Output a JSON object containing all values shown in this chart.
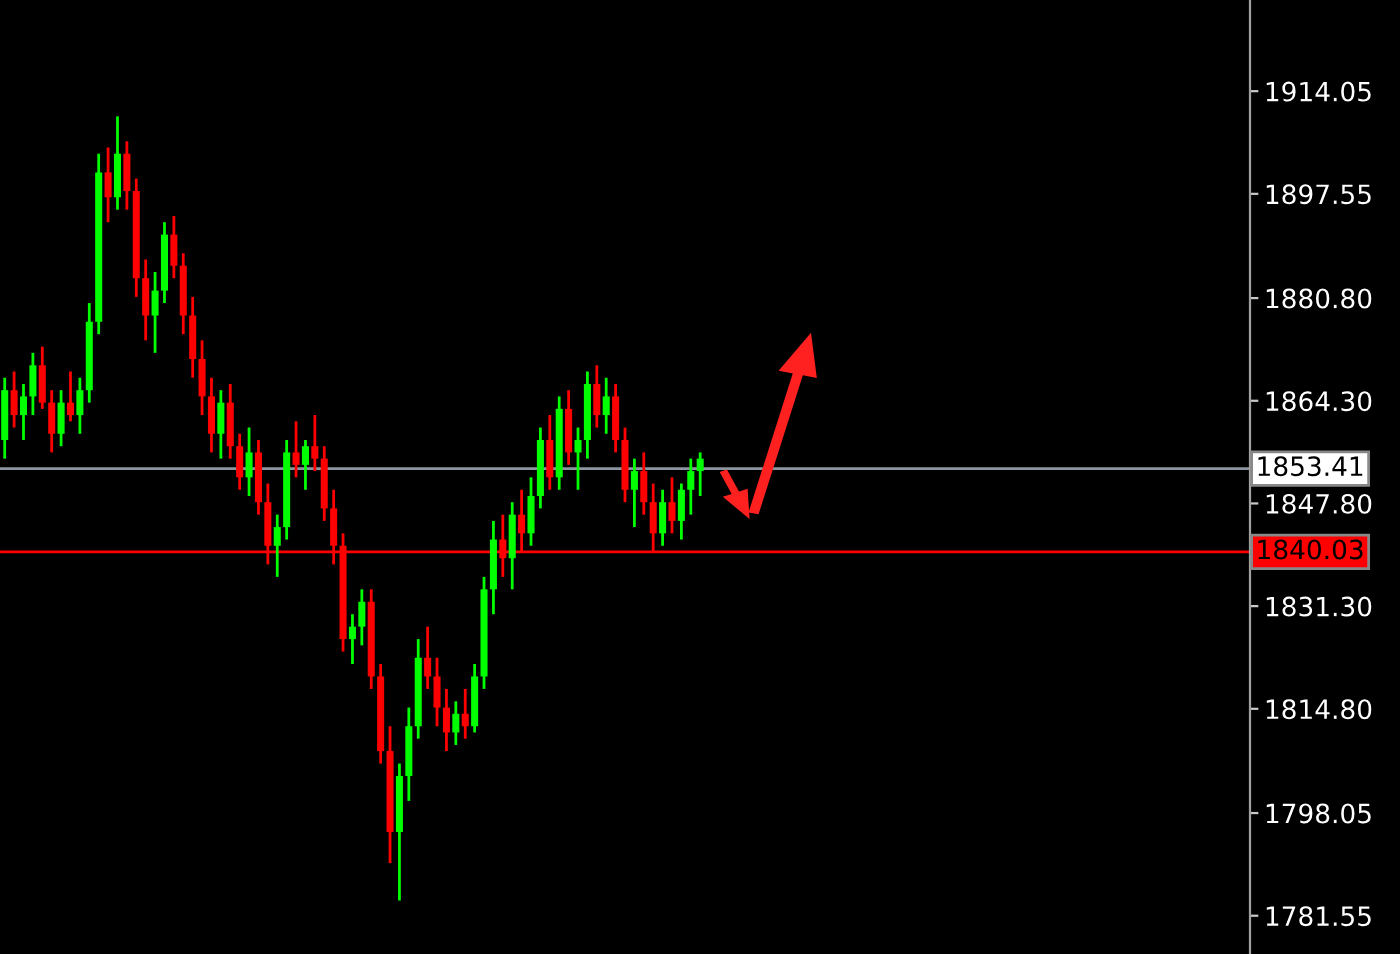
{
  "chart_data": {
    "type": "candlestick",
    "categories": [
      null,
      null,
      null,
      null,
      null,
      null,
      null,
      null,
      null,
      null,
      null,
      null,
      null,
      null,
      null,
      null,
      null,
      null,
      null,
      null,
      null,
      null,
      null,
      null,
      null,
      null,
      null,
      null,
      null,
      null,
      null,
      null,
      null,
      null,
      null,
      null,
      null,
      null,
      null,
      null,
      null,
      null,
      null,
      null,
      null,
      null,
      null,
      null,
      null,
      null,
      null,
      null,
      null,
      null,
      null,
      null,
      null,
      null,
      null,
      null,
      null,
      null,
      null,
      null,
      null,
      null,
      null,
      null,
      null,
      null,
      null,
      null,
      null,
      null,
      null,
      null,
      null,
      null,
      null,
      null,
      null,
      null,
      null,
      null,
      null,
      null,
      null,
      null,
      null,
      null,
      null,
      null,
      null,
      null,
      null,
      null,
      null,
      null,
      null,
      null,
      null,
      null,
      null,
      null,
      null,
      null,
      null,
      null,
      null,
      null,
      null,
      null,
      null,
      null,
      null,
      null,
      null,
      null,
      null,
      null,
      null,
      null,
      null,
      null,
      null,
      null,
      null,
      null,
      null,
      null,
      null,
      null,
      null
    ],
    "ohlc": [
      [
        1858,
        1868,
        1855,
        1866
      ],
      [
        1866,
        1869,
        1860,
        1862
      ],
      [
        1862,
        1867,
        1858,
        1865
      ],
      [
        1865,
        1872,
        1862,
        1870
      ],
      [
        1870,
        1873,
        1863,
        1864
      ],
      [
        1864,
        1866,
        1856,
        1859
      ],
      [
        1859,
        1866,
        1857,
        1864
      ],
      [
        1864,
        1869,
        1861,
        1862
      ],
      [
        1862,
        1868,
        1859,
        1866
      ],
      [
        1866,
        1880,
        1864,
        1877
      ],
      [
        1877,
        1904,
        1875,
        1901
      ],
      [
        1901,
        1905,
        1893,
        1897
      ],
      [
        1897,
        1910,
        1895,
        1904
      ],
      [
        1904,
        1906,
        1895,
        1898
      ],
      [
        1898,
        1900,
        1881,
        1884
      ],
      [
        1884,
        1887,
        1874,
        1878
      ],
      [
        1878,
        1885,
        1872,
        1882
      ],
      [
        1882,
        1893,
        1880,
        1891
      ],
      [
        1891,
        1894,
        1884,
        1886
      ],
      [
        1886,
        1888,
        1875,
        1878
      ],
      [
        1878,
        1881,
        1868,
        1871
      ],
      [
        1871,
        1874,
        1862,
        1865
      ],
      [
        1865,
        1868,
        1856,
        1859
      ],
      [
        1859,
        1866,
        1855,
        1864
      ],
      [
        1864,
        1867,
        1855,
        1857
      ],
      [
        1857,
        1859,
        1850,
        1852
      ],
      [
        1852,
        1860,
        1849,
        1856
      ],
      [
        1856,
        1858,
        1846,
        1848
      ],
      [
        1848,
        1851,
        1838,
        1841
      ],
      [
        1841,
        1846,
        1836,
        1844
      ],
      [
        1844,
        1858,
        1842,
        1856
      ],
      [
        1856,
        1861,
        1852,
        1854
      ],
      [
        1854,
        1858,
        1850,
        1857
      ],
      [
        1857,
        1862,
        1853,
        1855
      ],
      [
        1855,
        1857,
        1845,
        1847
      ],
      [
        1847,
        1850,
        1838,
        1841
      ],
      [
        1841,
        1843,
        1824,
        1826
      ],
      [
        1826,
        1830,
        1822,
        1828
      ],
      [
        1828,
        1834,
        1825,
        1832
      ],
      [
        1832,
        1834,
        1818,
        1820
      ],
      [
        1820,
        1822,
        1806,
        1808
      ],
      [
        1808,
        1812,
        1790,
        1795
      ],
      [
        1795,
        1806,
        1784,
        1804
      ],
      [
        1804,
        1815,
        1800,
        1812
      ],
      [
        1812,
        1826,
        1810,
        1823
      ],
      [
        1823,
        1828,
        1818,
        1820
      ],
      [
        1820,
        1823,
        1812,
        1815
      ],
      [
        1815,
        1818,
        1808,
        1811
      ],
      [
        1811,
        1816,
        1809,
        1814
      ],
      [
        1814,
        1818,
        1810,
        1812
      ],
      [
        1812,
        1822,
        1811,
        1820
      ],
      [
        1820,
        1836,
        1818,
        1834
      ],
      [
        1834,
        1845,
        1830,
        1842
      ],
      [
        1842,
        1846,
        1836,
        1839
      ],
      [
        1839,
        1848,
        1834,
        1846
      ],
      [
        1846,
        1850,
        1840,
        1843
      ],
      [
        1843,
        1852,
        1841,
        1849
      ],
      [
        1849,
        1860,
        1847,
        1858
      ],
      [
        1858,
        1862,
        1850,
        1852
      ],
      [
        1852,
        1865,
        1850,
        1863
      ],
      [
        1863,
        1866,
        1854,
        1856
      ],
      [
        1856,
        1860,
        1850,
        1858
      ],
      [
        1858,
        1869,
        1855,
        1867
      ],
      [
        1867,
        1870,
        1860,
        1862
      ],
      [
        1862,
        1868,
        1859,
        1865
      ],
      [
        1865,
        1867,
        1856,
        1858
      ],
      [
        1858,
        1860,
        1848,
        1850
      ],
      [
        1850,
        1855,
        1844,
        1853
      ],
      [
        1853,
        1856,
        1846,
        1848
      ],
      [
        1848,
        1851,
        1840,
        1843
      ],
      [
        1843,
        1850,
        1841,
        1848
      ],
      [
        1848,
        1852,
        1843,
        1845
      ],
      [
        1845,
        1851,
        1842,
        1850
      ],
      [
        1850,
        1855,
        1846,
        1853
      ],
      [
        1853,
        1856,
        1849,
        1855
      ],
      null,
      null,
      null,
      null,
      null,
      null,
      null,
      null,
      null,
      null,
      null,
      null,
      null,
      null,
      null,
      null,
      null,
      null,
      null,
      null,
      null,
      null,
      null,
      null,
      null,
      null,
      null,
      null,
      null,
      null,
      null,
      null,
      null,
      null,
      null,
      null,
      null,
      null,
      null,
      null,
      null,
      null,
      null,
      null,
      null,
      null,
      null,
      null,
      null,
      null,
      null,
      null,
      null,
      null,
      null,
      null,
      null,
      null
    ],
    "ylim": [
      1775.4,
      1928.7
    ],
    "yticks": [
      1781.55,
      1798.05,
      {
        "value": 1814.8,
        "label": "1814.80"
      },
      {
        "value": 1831.3,
        "label": "1831.30"
      },
      {
        "value": 1847.8,
        "label": "1847.80"
      },
      {
        "value": 1864.3,
        "label": "1864.30"
      },
      {
        "value": 1880.8,
        "label": "1880.80"
      },
      1897.55,
      1914.05
    ],
    "ref_lines": [
      {
        "axis": "y",
        "value": 1853.41,
        "label": "1853.41",
        "color": "#8c96a0"
      },
      {
        "axis": "y",
        "value": 1840.03,
        "label": "1840.03",
        "color": "#ff0000"
      }
    ],
    "tick_labels": "y",
    "grid": false
  }
}
